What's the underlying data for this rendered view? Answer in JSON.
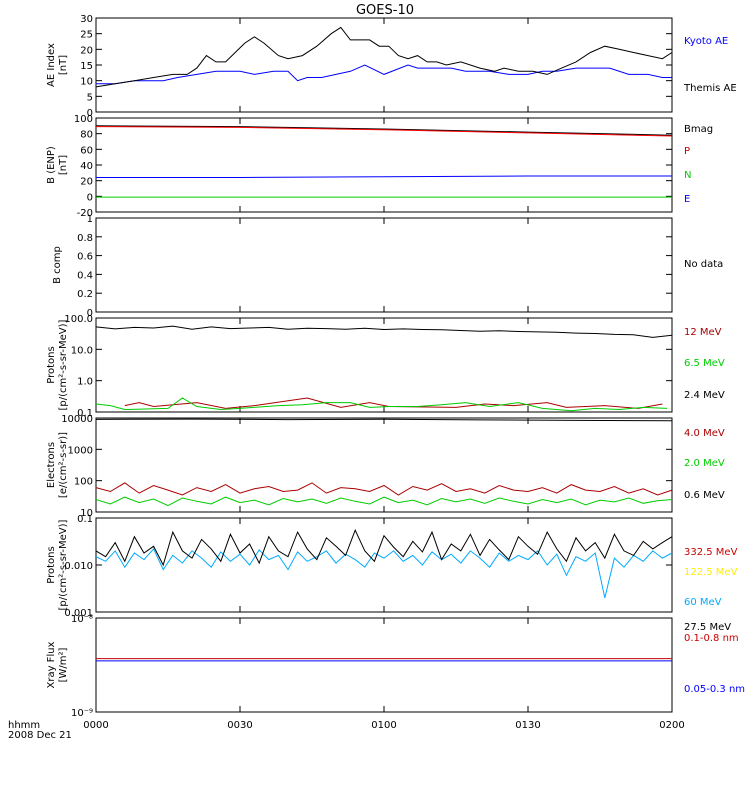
{
  "title": "GOES-10",
  "footer": {
    "time_label": "hhmm",
    "date_label": "2008 Dec 21"
  },
  "x_ticks": [
    "0000",
    "0030",
    "0100",
    "0130",
    "0200"
  ],
  "chart_data": [
    {
      "type": "line",
      "ylabel": "AE Index\n[nT]",
      "ylim": [
        0,
        30
      ],
      "yticks": [
        0,
        5,
        10,
        15,
        20,
        25,
        30
      ],
      "series": [
        {
          "name": "Kyoto AE",
          "color": "#0000ff",
          "x": [
            0,
            4,
            8,
            10,
            14,
            17,
            21,
            25,
            27,
            30,
            33,
            37,
            40,
            42,
            44,
            47,
            50,
            53,
            56,
            60,
            65,
            67,
            70,
            74,
            77,
            82,
            86,
            90,
            93,
            96,
            100,
            104,
            107,
            111,
            115,
            118,
            120
          ],
          "y": [
            9,
            9,
            10,
            10,
            10,
            11,
            12,
            13,
            13,
            13,
            12,
            13,
            13,
            10,
            11,
            11,
            12,
            13,
            15,
            12,
            15,
            14,
            14,
            14,
            13,
            13,
            12,
            12,
            13,
            13,
            14,
            14,
            14,
            12,
            12,
            11,
            11
          ]
        },
        {
          "name": "Themis AE",
          "color": "#000000",
          "x": [
            0,
            4,
            8,
            12,
            16,
            19,
            21,
            23,
            25,
            27,
            29,
            31,
            33,
            35,
            38,
            40,
            43,
            46,
            49,
            51,
            53,
            55,
            57,
            59,
            61,
            63,
            65,
            67,
            69,
            71,
            73,
            76,
            80,
            83,
            85,
            88,
            91,
            94,
            97,
            100,
            103,
            106,
            109,
            112,
            115,
            118,
            120
          ],
          "y": [
            8,
            9,
            10,
            11,
            12,
            12,
            14,
            18,
            16,
            16,
            19,
            22,
            24,
            22,
            18,
            17,
            18,
            21,
            25,
            27,
            23,
            23,
            23,
            21,
            21,
            18,
            17,
            18,
            16,
            16,
            15,
            16,
            14,
            13,
            14,
            13,
            13,
            12,
            14,
            16,
            19,
            21,
            20,
            19,
            18,
            17,
            19
          ]
        }
      ],
      "legend": [
        {
          "label": "Kyoto AE",
          "color": "#0000ff"
        },
        {
          "label": "Themis AE",
          "color": "#000000"
        }
      ]
    },
    {
      "type": "line",
      "ylabel": "B (ENP)\n[nT]",
      "ylim": [
        -20,
        100
      ],
      "yticks": [
        -20,
        0,
        20,
        40,
        60,
        80,
        100
      ],
      "series": [
        {
          "name": "Bmag",
          "color": "#000000",
          "x": [
            0,
            30,
            60,
            90,
            120
          ],
          "y": [
            90,
            89,
            86,
            82,
            78
          ]
        },
        {
          "name": "P",
          "color": "#ff0000",
          "x": [
            0,
            30,
            60,
            90,
            120
          ],
          "y": [
            89,
            88,
            85,
            81,
            77
          ]
        },
        {
          "name": "N",
          "color": "#00cc00",
          "x": [
            0,
            30,
            60,
            90,
            120
          ],
          "y": [
            -1,
            -1,
            -1,
            -1,
            -1
          ]
        },
        {
          "name": "E",
          "color": "#0000ff",
          "x": [
            0,
            30,
            60,
            90,
            120
          ],
          "y": [
            24,
            24,
            25,
            26,
            26
          ]
        }
      ],
      "legend": [
        {
          "label": "Bmag",
          "color": "#000000"
        },
        {
          "label": "P",
          "color": "#cc0000"
        },
        {
          "label": "N",
          "color": "#00cc00"
        },
        {
          "label": "E",
          "color": "#0000ff"
        }
      ]
    },
    {
      "type": "line",
      "ylabel": "B comp",
      "ylim": [
        0,
        1
      ],
      "yticks": [
        0,
        0.2,
        0.4,
        0.6,
        0.8,
        1.0
      ],
      "series": [],
      "legend": [
        {
          "label": "No data",
          "color": "#000000"
        }
      ]
    },
    {
      "type": "line",
      "log": true,
      "ylabel": "Protons\n[p/(cm²-s-sr-MeV)]",
      "ylim": [
        0.1,
        100
      ],
      "yticks": [
        0.1,
        1.0,
        10.0,
        100.0
      ],
      "series": [
        {
          "name": "12 MeV",
          "color": "#aa0000",
          "x": [
            6,
            9,
            12,
            21,
            27,
            33,
            44,
            51,
            57,
            61,
            75,
            81,
            87,
            94,
            98,
            106,
            113,
            118
          ],
          "y": [
            0.16,
            0.2,
            0.15,
            0.2,
            0.13,
            0.16,
            0.28,
            0.14,
            0.2,
            0.15,
            0.14,
            0.18,
            0.16,
            0.2,
            0.14,
            0.16,
            0.13,
            0.18
          ]
        },
        {
          "name": "6.5 MeV",
          "color": "#00cc00",
          "x": [
            0,
            3,
            6,
            15,
            18,
            21,
            26,
            30,
            38,
            43,
            48,
            53,
            57,
            61,
            67,
            72,
            77,
            82,
            88,
            93,
            99,
            104,
            109,
            114,
            119
          ],
          "y": [
            0.18,
            0.16,
            0.12,
            0.13,
            0.28,
            0.15,
            0.12,
            0.13,
            0.16,
            0.17,
            0.2,
            0.2,
            0.14,
            0.15,
            0.15,
            0.17,
            0.2,
            0.15,
            0.2,
            0.13,
            0.11,
            0.13,
            0.12,
            0.14,
            0.13
          ]
        },
        {
          "name": "2.4 MeV",
          "color": "#000000",
          "x": [
            0,
            4,
            8,
            12,
            16,
            20,
            24,
            28,
            32,
            36,
            40,
            44,
            48,
            52,
            56,
            60,
            64,
            68,
            72,
            76,
            80,
            84,
            88,
            92,
            96,
            100,
            104,
            108,
            112,
            116,
            120
          ],
          "y": [
            52,
            45,
            50,
            48,
            55,
            44,
            52,
            46,
            48,
            50,
            44,
            47,
            46,
            44,
            47,
            43,
            45,
            43,
            42,
            40,
            38,
            39,
            37,
            36,
            35,
            33,
            32,
            30,
            29,
            24,
            28
          ]
        }
      ],
      "legend": [
        {
          "label": "12 MeV",
          "color": "#aa0000"
        },
        {
          "label": "6.5 MeV",
          "color": "#00cc00"
        },
        {
          "label": "2.4 MeV",
          "color": "#000000"
        }
      ]
    },
    {
      "type": "line",
      "log": true,
      "ylabel": "Electrons\n[e/(cm²-s-sr)]",
      "ylim": [
        10,
        10000
      ],
      "yticks": [
        10,
        100,
        1000,
        10000
      ],
      "series": [
        {
          "name": "4.0 MeV",
          "color": "#aa0000",
          "x": [
            0,
            3,
            6,
            9,
            12,
            15,
            18,
            21,
            24,
            27,
            30,
            33,
            36,
            39,
            42,
            45,
            48,
            51,
            54,
            57,
            60,
            63,
            66,
            69,
            72,
            75,
            78,
            81,
            84,
            87,
            90,
            93,
            96,
            99,
            102,
            105,
            108,
            111,
            114,
            117,
            120
          ],
          "y": [
            60,
            45,
            85,
            40,
            70,
            50,
            35,
            60,
            45,
            75,
            40,
            55,
            65,
            45,
            50,
            85,
            40,
            60,
            55,
            45,
            70,
            35,
            65,
            50,
            80,
            45,
            55,
            40,
            70,
            50,
            45,
            60,
            40,
            75,
            50,
            45,
            65,
            40,
            55,
            35,
            50
          ]
        },
        {
          "name": "2.0 MeV",
          "color": "#00cc00",
          "x": [
            0,
            3,
            6,
            9,
            12,
            15,
            18,
            21,
            24,
            27,
            30,
            33,
            36,
            39,
            42,
            45,
            48,
            51,
            54,
            57,
            60,
            63,
            66,
            69,
            72,
            75,
            78,
            81,
            84,
            87,
            90,
            93,
            96,
            99,
            102,
            105,
            108,
            111,
            114,
            117,
            120
          ],
          "y": [
            25,
            18,
            30,
            20,
            26,
            16,
            28,
            22,
            18,
            30,
            20,
            24,
            17,
            27,
            21,
            26,
            19,
            28,
            22,
            18,
            30,
            20,
            24,
            17,
            27,
            21,
            26,
            19,
            28,
            22,
            18,
            25,
            20,
            26,
            17,
            24,
            21,
            28,
            19,
            23,
            25
          ]
        },
        {
          "name": "0.6 MeV",
          "color": "#000000",
          "x": [
            0,
            20,
            40,
            60,
            80,
            100,
            120
          ],
          "y": [
            9000,
            9200,
            8900,
            9100,
            8700,
            8400,
            8200
          ]
        }
      ],
      "legend": [
        {
          "label": "4.0 MeV",
          "color": "#aa0000"
        },
        {
          "label": "2.0 MeV",
          "color": "#00cc00"
        },
        {
          "label": "0.6 MeV",
          "color": "#000000"
        }
      ]
    },
    {
      "type": "line",
      "log": true,
      "ylabel": "Protons\n[p/(cm²-s-sr-MeV)]",
      "ylim": [
        0.001,
        0.1
      ],
      "yticks": [
        0.001,
        0.01,
        0.1
      ],
      "series": [
        {
          "name": "332.5 MeV",
          "color": "#cc0000",
          "x": [],
          "y": []
        },
        {
          "name": "122.5 MeV",
          "color": "#ffee00",
          "x": [],
          "y": []
        },
        {
          "name": "60 MeV",
          "color": "#00aaff",
          "x": [
            0,
            2,
            4,
            6,
            8,
            10,
            12,
            14,
            16,
            18,
            20,
            22,
            24,
            26,
            28,
            30,
            32,
            34,
            36,
            38,
            40,
            42,
            44,
            46,
            48,
            50,
            52,
            54,
            56,
            58,
            60,
            62,
            64,
            66,
            68,
            70,
            72,
            74,
            76,
            78,
            80,
            82,
            84,
            86,
            88,
            90,
            92,
            94,
            96,
            98,
            100,
            102,
            104,
            106,
            108,
            110,
            112,
            114,
            116,
            118,
            120
          ],
          "y": [
            0.015,
            0.012,
            0.02,
            0.009,
            0.018,
            0.013,
            0.022,
            0.008,
            0.016,
            0.011,
            0.02,
            0.014,
            0.009,
            0.019,
            0.012,
            0.017,
            0.01,
            0.021,
            0.013,
            0.016,
            0.008,
            0.019,
            0.012,
            0.015,
            0.02,
            0.011,
            0.017,
            0.013,
            0.009,
            0.018,
            0.014,
            0.02,
            0.012,
            0.016,
            0.01,
            0.019,
            0.013,
            0.017,
            0.011,
            0.02,
            0.014,
            0.009,
            0.018,
            0.012,
            0.016,
            0.013,
            0.02,
            0.01,
            0.017,
            0.006,
            0.015,
            0.012,
            0.018,
            0.002,
            0.014,
            0.009,
            0.016,
            0.012,
            0.02,
            0.014,
            0.018
          ]
        },
        {
          "name": "27.5 MeV",
          "color": "#000000",
          "x": [
            0,
            2,
            4,
            6,
            8,
            10,
            12,
            14,
            16,
            18,
            20,
            22,
            24,
            26,
            28,
            30,
            32,
            34,
            36,
            38,
            40,
            42,
            44,
            46,
            48,
            50,
            52,
            54,
            56,
            58,
            60,
            62,
            64,
            66,
            68,
            70,
            72,
            74,
            76,
            78,
            80,
            82,
            84,
            86,
            88,
            90,
            92,
            94,
            96,
            98,
            100,
            102,
            104,
            106,
            108,
            110,
            112,
            114,
            116,
            118,
            120
          ],
          "y": [
            0.02,
            0.015,
            0.03,
            0.012,
            0.04,
            0.018,
            0.025,
            0.01,
            0.05,
            0.02,
            0.014,
            0.035,
            0.022,
            0.012,
            0.045,
            0.018,
            0.028,
            0.011,
            0.04,
            0.02,
            0.015,
            0.05,
            0.022,
            0.013,
            0.038,
            0.025,
            0.016,
            0.055,
            0.02,
            0.012,
            0.042,
            0.024,
            0.015,
            0.032,
            0.019,
            0.05,
            0.013,
            0.028,
            0.02,
            0.045,
            0.016,
            0.035,
            0.021,
            0.013,
            0.04,
            0.025,
            0.017,
            0.05,
            0.022,
            0.012,
            0.038,
            0.02,
            0.03,
            0.014,
            0.045,
            0.02,
            0.016,
            0.032,
            0.022,
            0.03,
            0.04
          ]
        }
      ],
      "legend": [
        {
          "label": "332.5 MeV",
          "color": "#cc0000"
        },
        {
          "label": "122.5 MeV",
          "color": "#ffee00"
        },
        {
          "label": "60 MeV",
          "color": "#00aaff"
        },
        {
          "label": "27.5 MeV",
          "color": "#000000"
        }
      ]
    },
    {
      "type": "line",
      "log": true,
      "ylabel": "Xray Flux\n[W/m²]",
      "ylim": [
        1e-09,
        1e-08
      ],
      "yticks": [
        1e-09,
        1e-08
      ],
      "ytick_labels": [
        "10⁻⁹",
        "10⁻⁸"
      ],
      "series": [
        {
          "name": "0.1-0.8 nm",
          "color": "#cc0000",
          "x": [
            0,
            120
          ],
          "y": [
            3.7e-09,
            3.7e-09
          ]
        },
        {
          "name": "0.05-0.3 nm",
          "color": "#0000ff",
          "x": [
            0,
            120
          ],
          "y": [
            3.5e-09,
            3.5e-09
          ]
        }
      ],
      "legend": [
        {
          "label": "0.1-0.8 nm",
          "color": "#cc0000"
        },
        {
          "label": "0.05-0.3 nm",
          "color": "#0000ff"
        }
      ]
    }
  ]
}
